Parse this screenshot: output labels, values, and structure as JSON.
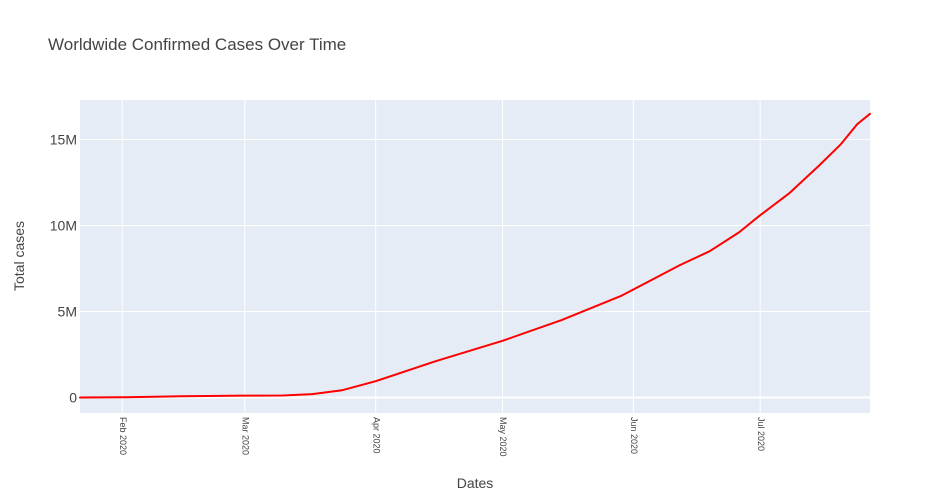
{
  "chart_data": {
    "type": "line",
    "title": "Worldwide Confirmed Cases Over Time",
    "xlabel": "Dates",
    "ylabel": "Total cases",
    "x_start": "2020-01-22",
    "x_end": "2020-07-27",
    "ylim": [
      -900000,
      17300000
    ],
    "grid": true,
    "x_ticks": [
      {
        "date": "2020-02-01",
        "label": "Feb 2020"
      },
      {
        "date": "2020-03-01",
        "label": "Mar 2020"
      },
      {
        "date": "2020-04-01",
        "label": "Apr 2020"
      },
      {
        "date": "2020-05-01",
        "label": "May 2020"
      },
      {
        "date": "2020-06-01",
        "label": "Jun 2020"
      },
      {
        "date": "2020-07-01",
        "label": "Jul 2020"
      }
    ],
    "y_ticks": [
      {
        "value": 0,
        "label": "0"
      },
      {
        "value": 5000000,
        "label": "5M"
      },
      {
        "value": 10000000,
        "label": "10M"
      },
      {
        "value": 15000000,
        "label": "15M"
      }
    ],
    "series": [
      {
        "color": "#ff0000",
        "x": [
          "2020-01-22",
          "2020-02-01",
          "2020-02-15",
          "2020-03-01",
          "2020-03-10",
          "2020-03-17",
          "2020-03-24",
          "2020-04-01",
          "2020-04-15",
          "2020-05-01",
          "2020-05-15",
          "2020-05-29",
          "2020-06-05",
          "2020-06-12",
          "2020-06-19",
          "2020-06-26",
          "2020-07-01",
          "2020-07-08",
          "2020-07-15",
          "2020-07-20",
          "2020-07-24",
          "2020-07-27"
        ],
        "y": [
          570,
          12000,
          70000,
          110000,
          120000,
          200000,
          420000,
          950000,
          2100000,
          3300000,
          4500000,
          5900000,
          6800000,
          7700000,
          8500000,
          9600000,
          10600000,
          11900000,
          13500000,
          14700000,
          15900000,
          16500000
        ]
      }
    ]
  }
}
